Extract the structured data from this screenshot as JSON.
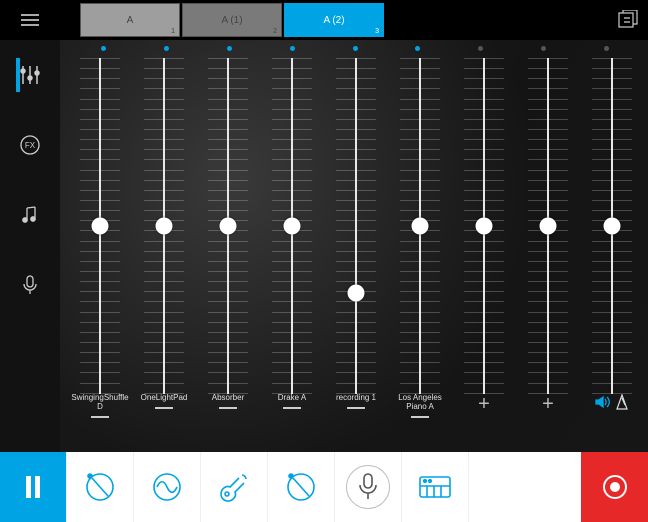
{
  "colors": {
    "accent": "#00a4e4",
    "record": "#e62828",
    "tab_inactive_bg": "#9e9e9e",
    "tab_inactive2_bg": "#7a7a7a",
    "tab_active_bg": "#00a4e4",
    "meter_bar": "#0099d8",
    "dot_on": "#00a4e4",
    "dot_off": "#555555"
  },
  "scenes": [
    {
      "label": "A",
      "index": "1",
      "active": false
    },
    {
      "label": "A (1)",
      "index": "2",
      "active": false
    },
    {
      "label": "A (2)",
      "index": "3",
      "active": true
    }
  ],
  "leftRail": [
    {
      "name": "mixer-icon",
      "active": true
    },
    {
      "name": "fx-icon",
      "active": false
    },
    {
      "name": "notes-icon",
      "active": false
    },
    {
      "name": "mic-icon",
      "active": false
    }
  ],
  "channels": [
    {
      "label": "SwingingShuffle\nD",
      "dot": true,
      "fader": 0.5,
      "level": 0.3,
      "type": "track"
    },
    {
      "label": "OneLightPad",
      "dot": true,
      "fader": 0.5,
      "level": 0.3,
      "type": "track"
    },
    {
      "label": "Absorber",
      "dot": true,
      "fader": 0.5,
      "level": 0.3,
      "type": "track"
    },
    {
      "label": "Drake A",
      "dot": true,
      "fader": 0.5,
      "level": 0.32,
      "type": "track"
    },
    {
      "label": "recording 1",
      "dot": true,
      "fader": 0.3,
      "level": 0.0,
      "type": "track"
    },
    {
      "label": "Los Angeles\nPiano A",
      "dot": true,
      "fader": 0.5,
      "level": 0.4,
      "type": "track"
    },
    {
      "label": "",
      "dot": false,
      "fader": 0.5,
      "level": 0.3,
      "type": "add"
    },
    {
      "label": "",
      "dot": false,
      "fader": 0.5,
      "level": 0.37,
      "type": "add"
    },
    {
      "label": "",
      "dot": false,
      "fader": 0.5,
      "level": 0.4,
      "type": "metronome"
    }
  ],
  "mixer": {
    "tick_count": 34,
    "bars_per_channel": 7
  },
  "bottomBar": [
    {
      "name": "pause-button",
      "style": "blue",
      "icon": "pause"
    },
    {
      "name": "drum-loop-1",
      "style": "white",
      "icon": "drum"
    },
    {
      "name": "synth-loop",
      "style": "white",
      "icon": "wave"
    },
    {
      "name": "guitar-loop",
      "style": "white",
      "icon": "guitar"
    },
    {
      "name": "drum-loop-2",
      "style": "white",
      "icon": "drum"
    },
    {
      "name": "mic-input",
      "style": "white-circ",
      "icon": "mic2"
    },
    {
      "name": "keyboard-input",
      "style": "white",
      "icon": "keys"
    },
    {
      "name": "spacer",
      "style": "spacer",
      "icon": ""
    },
    {
      "name": "record-button",
      "style": "red",
      "icon": "rec"
    }
  ]
}
